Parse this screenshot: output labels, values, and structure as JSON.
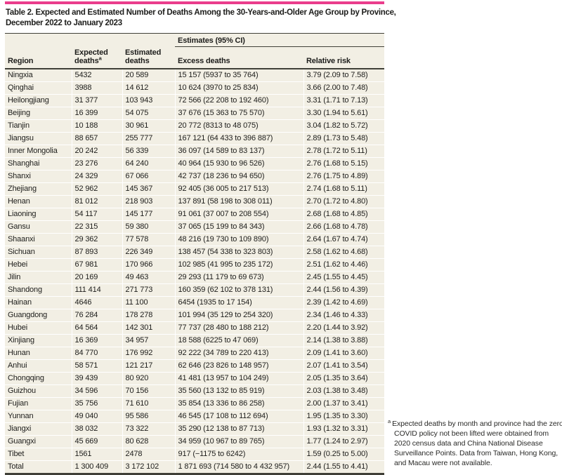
{
  "colors": {
    "accent_pink": "#ea3d8c",
    "row_beige": "#f2efe4",
    "rule_dark": "#3f3f37",
    "text": "#1d1d1b"
  },
  "table": {
    "title_line1": "Table 2. Expected and Estimated Number of Deaths Among the 30-Years-and-Older Age Group by Province,",
    "title_line2": "December 2022 to January 2023",
    "span_header": "Estimates (95% CI)",
    "headers": {
      "region": "Region",
      "expected": "Expected deaths",
      "expected_sup": "a",
      "estimated": "Estimated deaths",
      "excess": "Excess deaths",
      "relative_risk": "Relative risk"
    },
    "rows": [
      {
        "region": "Ningxia",
        "expected": "5432",
        "estimated": "20 589",
        "excess": "15 157 (5937 to 35 764)",
        "relative_risk": "3.79 (2.09 to 7.58)"
      },
      {
        "region": "Qinghai",
        "expected": "3988",
        "estimated": "14 612",
        "excess": "10 624 (3970 to 25 834)",
        "relative_risk": "3.66 (2.00 to 7.48)"
      },
      {
        "region": "Heilongjiang",
        "expected": "31 377",
        "estimated": "103 943",
        "excess": "72 566 (22 208 to 192 460)",
        "relative_risk": "3.31 (1.71 to 7.13)"
      },
      {
        "region": "Beijing",
        "expected": "16 399",
        "estimated": "54 075",
        "excess": "37 676 (15 363 to 75 570)",
        "relative_risk": "3.30 (1.94 to 5.61)"
      },
      {
        "region": "Tianjin",
        "expected": "10 188",
        "estimated": "30 961",
        "excess": "20 772 (8313 to 48 075)",
        "relative_risk": "3.04 (1.82 to 5.72)"
      },
      {
        "region": "Jiangsu",
        "expected": "88 657",
        "estimated": "255 777",
        "excess": "167 121 (64 433 to 396 887)",
        "relative_risk": "2.89 (1.73 to 5.48)"
      },
      {
        "region": "Inner Mongolia",
        "expected": "20 242",
        "estimated": "56 339",
        "excess": "36 097 (14 589 to 83 137)",
        "relative_risk": "2.78 (1.72 to 5.11)"
      },
      {
        "region": "Shanghai",
        "expected": "23 276",
        "estimated": "64 240",
        "excess": "40 964 (15 930 to 96 526)",
        "relative_risk": "2.76 (1.68 to 5.15)"
      },
      {
        "region": "Shanxi",
        "expected": "24 329",
        "estimated": "67 066",
        "excess": "42 737 (18 236 to 94 650)",
        "relative_risk": "2.76 (1.75 to 4.89)"
      },
      {
        "region": "Zhejiang",
        "expected": "52 962",
        "estimated": "145 367",
        "excess": "92 405 (36 005 to 217 513)",
        "relative_risk": "2.74 (1.68 to 5.11)"
      },
      {
        "region": "Henan",
        "expected": "81 012",
        "estimated": "218 903",
        "excess": "137 891 (58 198 to 308 011)",
        "relative_risk": "2.70 (1.72 to 4.80)"
      },
      {
        "region": "Liaoning",
        "expected": "54 117",
        "estimated": "145 177",
        "excess": "91 061 (37 007 to 208 554)",
        "relative_risk": "2.68 (1.68 to 4.85)"
      },
      {
        "region": "Gansu",
        "expected": "22 315",
        "estimated": "59 380",
        "excess": "37 065 (15 199 to 84 343)",
        "relative_risk": "2.66 (1.68 to 4.78)"
      },
      {
        "region": "Shaanxi",
        "expected": "29 362",
        "estimated": "77 578",
        "excess": "48 216 (19 730 to 109 890)",
        "relative_risk": "2.64 (1.67 to 4.74)"
      },
      {
        "region": "Sichuan",
        "expected": "87 893",
        "estimated": "226 349",
        "excess": "138 457 (54 338 to 323 803)",
        "relative_risk": "2.58 (1.62 to 4.68)"
      },
      {
        "region": "Hebei",
        "expected": "67 981",
        "estimated": "170 966",
        "excess": "102 985 (41 995 to 235 172)",
        "relative_risk": "2.51 (1.62 to 4.46)"
      },
      {
        "region": "Jilin",
        "expected": "20 169",
        "estimated": "49 463",
        "excess": "29 293 (11 179 to 69 673)",
        "relative_risk": "2.45 (1.55 to 4.45)"
      },
      {
        "region": "Shandong",
        "expected": "111 414",
        "estimated": "271 773",
        "excess": "160 359 (62 102 to 378 131)",
        "relative_risk": "2.44 (1.56 to 4.39)"
      },
      {
        "region": "Hainan",
        "expected": "4646",
        "estimated": "11 100",
        "excess": "6454 (1935 to 17 154)",
        "relative_risk": "2.39 (1.42 to 4.69)"
      },
      {
        "region": "Guangdong",
        "expected": "76 284",
        "estimated": "178 278",
        "excess": "101 994 (35 129 to 254 320)",
        "relative_risk": "2.34 (1.46 to 4.33)"
      },
      {
        "region": "Hubei",
        "expected": "64 564",
        "estimated": "142 301",
        "excess": "77 737 (28 480 to 188 212)",
        "relative_risk": "2.20 (1.44 to 3.92)"
      },
      {
        "region": "Xinjiang",
        "expected": "16 369",
        "estimated": "34 957",
        "excess": "18 588 (6225 to 47 069)",
        "relative_risk": "2.14 (1.38 to 3.88)"
      },
      {
        "region": "Hunan",
        "expected": "84 770",
        "estimated": "176 992",
        "excess": "92 222 (34 789 to 220 413)",
        "relative_risk": "2.09 (1.41 to 3.60)"
      },
      {
        "region": "Anhui",
        "expected": "58 571",
        "estimated": "121 217",
        "excess": "62 646 (23 826 to 148 957)",
        "relative_risk": "2.07 (1.41 to 3.54)"
      },
      {
        "region": "Chongqing",
        "expected": "39 439",
        "estimated": "80 920",
        "excess": "41 481 (13 957 to 104 249)",
        "relative_risk": "2.05 (1.35 to 3.64)"
      },
      {
        "region": "Guizhou",
        "expected": "34 596",
        "estimated": "70 156",
        "excess": "35 560 (13 132 to 85 919)",
        "relative_risk": "2.03 (1.38 to 3.48)"
      },
      {
        "region": "Fujian",
        "expected": "35 756",
        "estimated": "71 610",
        "excess": "35 854 (13 336 to 86 258)",
        "relative_risk": "2.00 (1.37 to 3.41)"
      },
      {
        "region": "Yunnan",
        "expected": "49 040",
        "estimated": "95 586",
        "excess": "46 545 (17 108 to 112 694)",
        "relative_risk": "1.95 (1.35 to 3.30)"
      },
      {
        "region": "Jiangxi",
        "expected": "38 032",
        "estimated": "73 322",
        "excess": "35 290 (12 138 to 87 713)",
        "relative_risk": "1.93 (1.32 to 3.31)"
      },
      {
        "region": "Guangxi",
        "expected": "45 669",
        "estimated": "80 628",
        "excess": "34 959 (10 967 to 89 765)",
        "relative_risk": "1.77 (1.24 to 2.97)"
      },
      {
        "region": "Tibet",
        "expected": "1561",
        "estimated": "2478",
        "excess": "917 (−1175 to 6242)",
        "relative_risk": "1.59 (0.25 to 5.00)"
      }
    ],
    "total_row": {
      "region": "Total",
      "expected": "1 300 409",
      "estimated": "3 172 102",
      "excess": "1 871 693 (714 580 to 4 432 957)",
      "relative_risk": "2.44 (1.55 to 4.41)"
    }
  },
  "footnote": {
    "marker": "a",
    "text": "Expected deaths by month and province had the zero COVID policy not been lifted were obtained from 2020 census data and China National Disease Surveillance Points. Data from Taiwan, Hong Kong, and Macau were not available."
  }
}
